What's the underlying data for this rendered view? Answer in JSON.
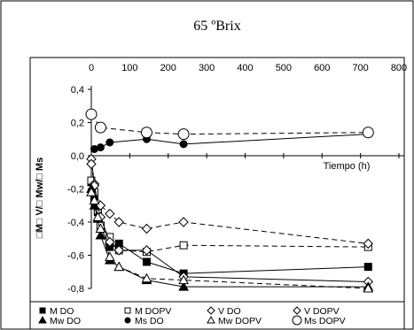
{
  "chart_data": {
    "type": "line",
    "title": "65 ºBrix",
    "xlabel": "Tiempo (h)",
    "ylabel": "□M□ V/□ Mw/□ Ms",
    "xlim": [
      0,
      800
    ],
    "ylim": [
      -0.8,
      0.4
    ],
    "x_ticks": [
      "0",
      "100",
      "200",
      "300",
      "400",
      "500",
      "600",
      "700",
      "800"
    ],
    "y_ticks": [
      "0,4",
      "0,2",
      "0,0",
      "-0,2",
      "-0,4",
      "-0,6",
      "-0,8"
    ],
    "grid": false,
    "legend_position": "bottom",
    "series": [
      {
        "name": "M DO",
        "marker": "filled-square",
        "line": "solid",
        "x": [
          0,
          8,
          17,
          24,
          48,
          72,
          144,
          240,
          720
        ],
        "y": [
          -0.16,
          -0.26,
          -0.34,
          -0.43,
          -0.55,
          -0.53,
          -0.64,
          -0.71,
          -0.67
        ]
      },
      {
        "name": "M DOPV",
        "marker": "open-square",
        "line": "dashed",
        "x": [
          0,
          8,
          17,
          24,
          48,
          72,
          144,
          240,
          720
        ],
        "y": [
          -0.15,
          -0.22,
          -0.33,
          -0.42,
          -0.49,
          -0.57,
          -0.58,
          -0.54,
          -0.55
        ]
      },
      {
        "name": "V DO",
        "marker": "open-diamond",
        "line": "solid",
        "x": [
          0,
          8,
          17,
          24,
          48,
          72,
          144,
          240,
          720
        ],
        "y": [
          -0.02,
          -0.17,
          -0.3,
          -0.37,
          -0.52,
          -0.57,
          -0.57,
          -0.73,
          -0.76
        ]
      },
      {
        "name": "V DOPV",
        "marker": "open-diamond",
        "line": "dashed",
        "x": [
          0,
          8,
          17,
          24,
          48,
          72,
          144,
          240,
          720
        ],
        "y": [
          -0.05,
          -0.18,
          -0.29,
          -0.3,
          -0.35,
          -0.4,
          -0.44,
          -0.4,
          -0.53
        ]
      },
      {
        "name": "Mw  DO",
        "marker": "filled-triangle",
        "line": "solid",
        "x": [
          0,
          8,
          17,
          24,
          48,
          72,
          144,
          240,
          720
        ],
        "y": [
          -0.2,
          -0.3,
          -0.38,
          -0.48,
          -0.63,
          -0.67,
          -0.75,
          -0.79,
          -0.79
        ]
      },
      {
        "name": "Ms DO",
        "marker": "filled-circle",
        "line": "solid",
        "x": [
          8,
          24,
          48,
          144,
          240,
          720
        ],
        "y": [
          0.04,
          0.05,
          0.08,
          0.1,
          0.07,
          0.13
        ]
      },
      {
        "name": "Mw  DOPV",
        "marker": "open-triangle",
        "line": "dashed",
        "x": [
          0,
          8,
          17,
          24,
          48,
          72,
          144,
          240,
          720
        ],
        "y": [
          -0.22,
          -0.27,
          -0.37,
          -0.44,
          -0.61,
          -0.67,
          -0.74,
          -0.75,
          -0.8
        ]
      },
      {
        "name": "Ms DOPV",
        "marker": "open-circle",
        "line": "dashed",
        "x": [
          0,
          24,
          144,
          240,
          720
        ],
        "y": [
          0.25,
          0.17,
          0.14,
          0.13,
          0.14
        ]
      }
    ]
  }
}
